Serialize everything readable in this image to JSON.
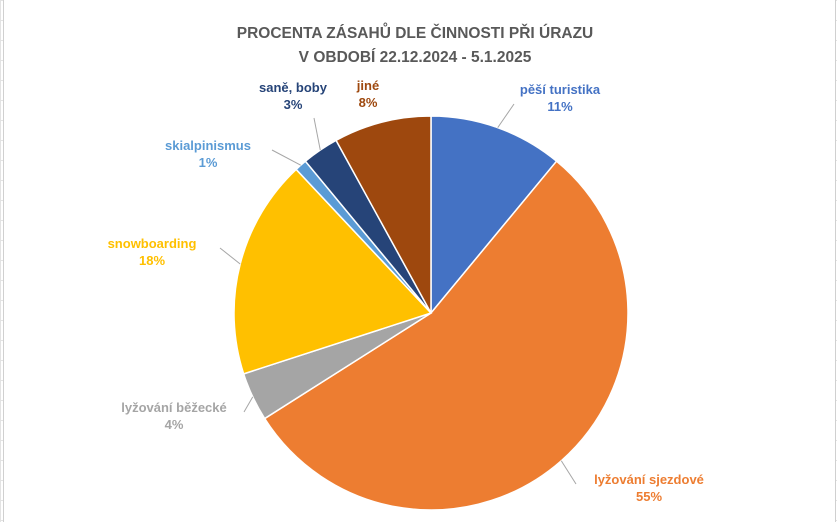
{
  "chart_data": {
    "type": "pie",
    "title_lines": [
      "PROCENTA ZÁSAHŮ DLE ČINNOSTI PŘI ÚRAZU",
      "V OBDOBÍ 22.12.2024 - 5.1.2025"
    ],
    "slices": [
      {
        "name": "pěší turistika",
        "value": 11,
        "label": "11%",
        "color": "#4472C4"
      },
      {
        "name": "lyžování sjezdové",
        "value": 55,
        "label": "55%",
        "color": "#ED7D31"
      },
      {
        "name": "lyžování běžecké",
        "value": 4,
        "label": "4%",
        "color": "#A5A5A5"
      },
      {
        "name": "snowboarding",
        "value": 18,
        "label": "18%",
        "color": "#FFC000"
      },
      {
        "name": "skialpinismus",
        "value": 1,
        "label": "1%",
        "color": "#5B9BD5"
      },
      {
        "name": "saně, boby",
        "value": 3,
        "label": "3%",
        "color": "#264478"
      },
      {
        "name": "jiné",
        "value": 8,
        "label": "8%",
        "color": "#9E480E"
      }
    ],
    "start_angle_deg": 0,
    "direction": "clockwise",
    "legend": "none",
    "data_labels": "outside-with-leader-lines"
  }
}
